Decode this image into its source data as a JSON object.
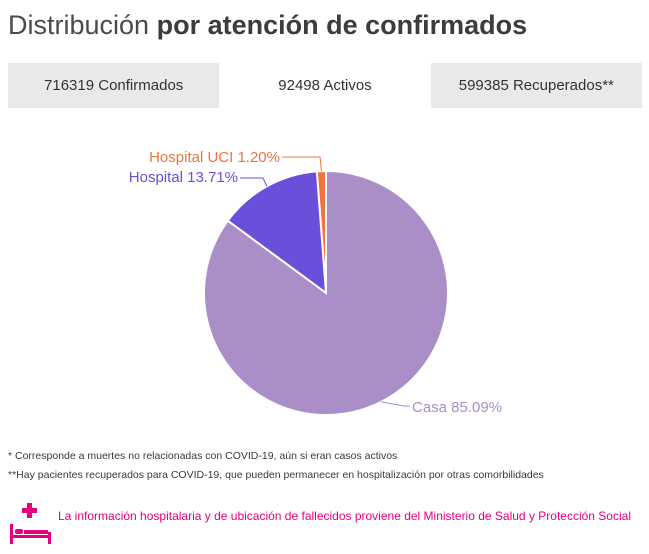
{
  "header": {
    "title_normal": "Distribución",
    "title_bold": "por atención de confirmados"
  },
  "tabs": [
    {
      "label": "716319 Confirmados",
      "active": false
    },
    {
      "label": "92498 Activos",
      "active": true
    },
    {
      "label": "599385 Recuperados**",
      "active": false
    }
  ],
  "chart_data": {
    "type": "pie",
    "slices": [
      {
        "label": "Hospital UCI 1.20%",
        "value": 1.2,
        "color": "#f07440"
      },
      {
        "label": "Hospital 13.71%",
        "value": 13.71,
        "color": "#6a4fdb"
      },
      {
        "label": "Casa 85.09%",
        "value": 85.09,
        "color": "#a98ec8"
      }
    ]
  },
  "notes": {
    "note1": "* Corresponde a muertes no relacionadas con COVID-19, aún si eran casos activos",
    "note2": "**Hay pacientes recuperados para COVID-19, que pueden permanecer en hospitalización por otras comorbilidades"
  },
  "footer": {
    "message": "La información hospitalaria y de ubicación de fallecidos proviene del Ministerio de Salud y Protección Social",
    "icon": "hospital-bed-icon",
    "color": "#e6007e"
  }
}
